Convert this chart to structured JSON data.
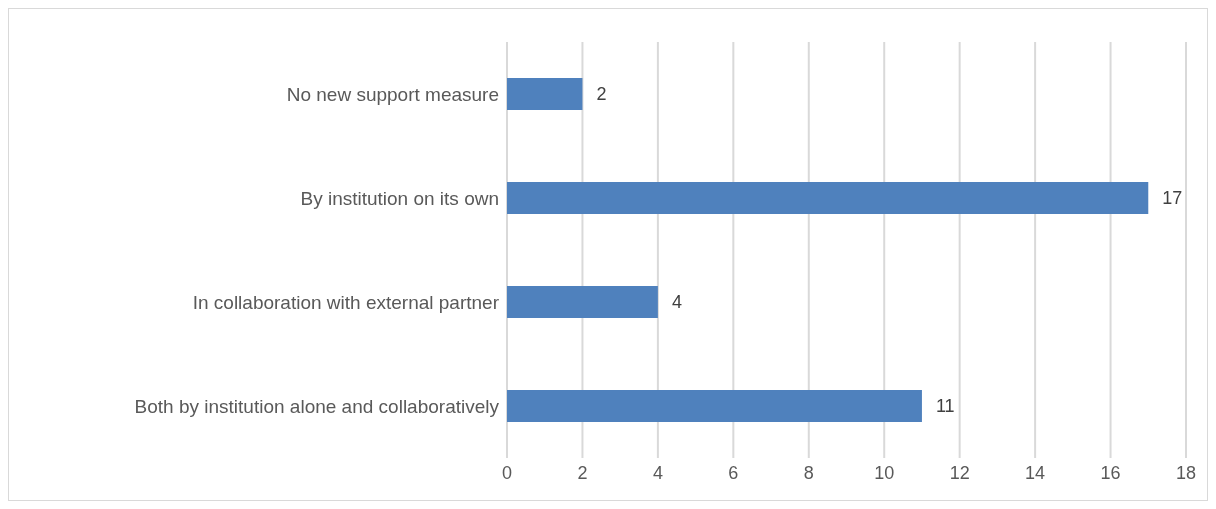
{
  "chart_data": {
    "type": "bar",
    "orientation": "horizontal",
    "categories": [
      "No new support measure",
      "By institution on its own",
      "In collaboration with external partner",
      "Both by institution alone and collaboratively"
    ],
    "values": [
      2,
      17,
      4,
      11
    ],
    "color": "#4f81bd",
    "xlim": [
      0,
      18
    ],
    "xticks": [
      0,
      2,
      4,
      6,
      8,
      10,
      12,
      14,
      16,
      18
    ],
    "grid": "x",
    "data_labels": true,
    "legend": false
  }
}
